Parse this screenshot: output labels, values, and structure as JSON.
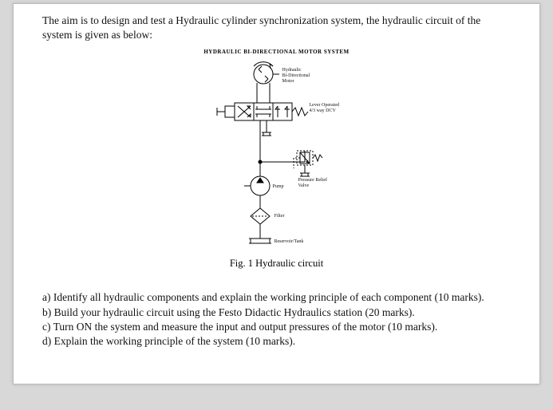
{
  "intro": "The aim is to design and test a Hydraulic cylinder synchronization system, the hydraulic circuit of the system is given as below:",
  "figure": {
    "title": "HYDRAULIC BI-DIRECTIONAL MOTOR SYSTEM",
    "caption": "Fig. 1 Hydraulic circuit",
    "labels": {
      "motor": "Hydraulic\nBi-Directional\nMotor",
      "dcv": "Lever Operated\n4/3 way DCV",
      "relief": "Pressure Relief\nValve",
      "pump": "Pump",
      "filter": "Filter",
      "tank": "Reservoir/Tank"
    },
    "colors": {
      "stroke": "#000000",
      "bg": "#ffffff"
    }
  },
  "questions": {
    "a": "a) Identify all hydraulic components and explain the working principle of each component (10 marks).",
    "b": "b) Build your hydraulic circuit using the Festo Didactic Hydraulics station (20 marks).",
    "c": "c) Turn ON the system and measure the input and output pressures of the motor (10 marks).",
    "d": "d) Explain the working principle of the system (10 marks)."
  }
}
